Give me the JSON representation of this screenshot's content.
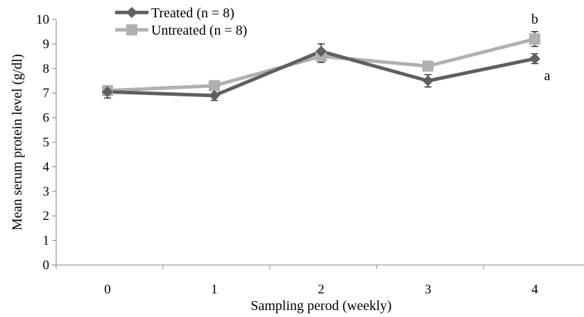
{
  "chart_data": {
    "type": "line",
    "title": "",
    "xlabel": "Sampling perod (weekly)",
    "ylabel": "Mean  serum protein level (g/dl)",
    "categories": [
      "0",
      "1",
      "2",
      "3",
      "4"
    ],
    "ylim": [
      0,
      10
    ],
    "yticks": [
      "0",
      "1",
      "2",
      "3",
      "4",
      "5",
      "6",
      "7",
      "8",
      "9",
      "10"
    ],
    "grid": false,
    "legend_position": "top-left",
    "series": [
      {
        "name": "Treated (n = 8)",
        "color": "#5f5f5f",
        "marker": "diamond",
        "values": [
          7.05,
          6.9,
          8.7,
          7.5,
          8.4
        ],
        "errors": [
          0.25,
          0.2,
          0.3,
          0.25,
          0.2
        ]
      },
      {
        "name": "Untreated (n = 8)",
        "color": "#b0b0b0",
        "marker": "square",
        "values": [
          7.1,
          7.3,
          8.5,
          8.1,
          9.2
        ],
        "errors": [
          0.2,
          0.2,
          0.25,
          0.2,
          0.3
        ]
      }
    ],
    "annotations": [
      {
        "text": "b",
        "category": "4",
        "y": 10.0
      },
      {
        "text": "a",
        "category": "4",
        "y": 7.7
      }
    ]
  }
}
